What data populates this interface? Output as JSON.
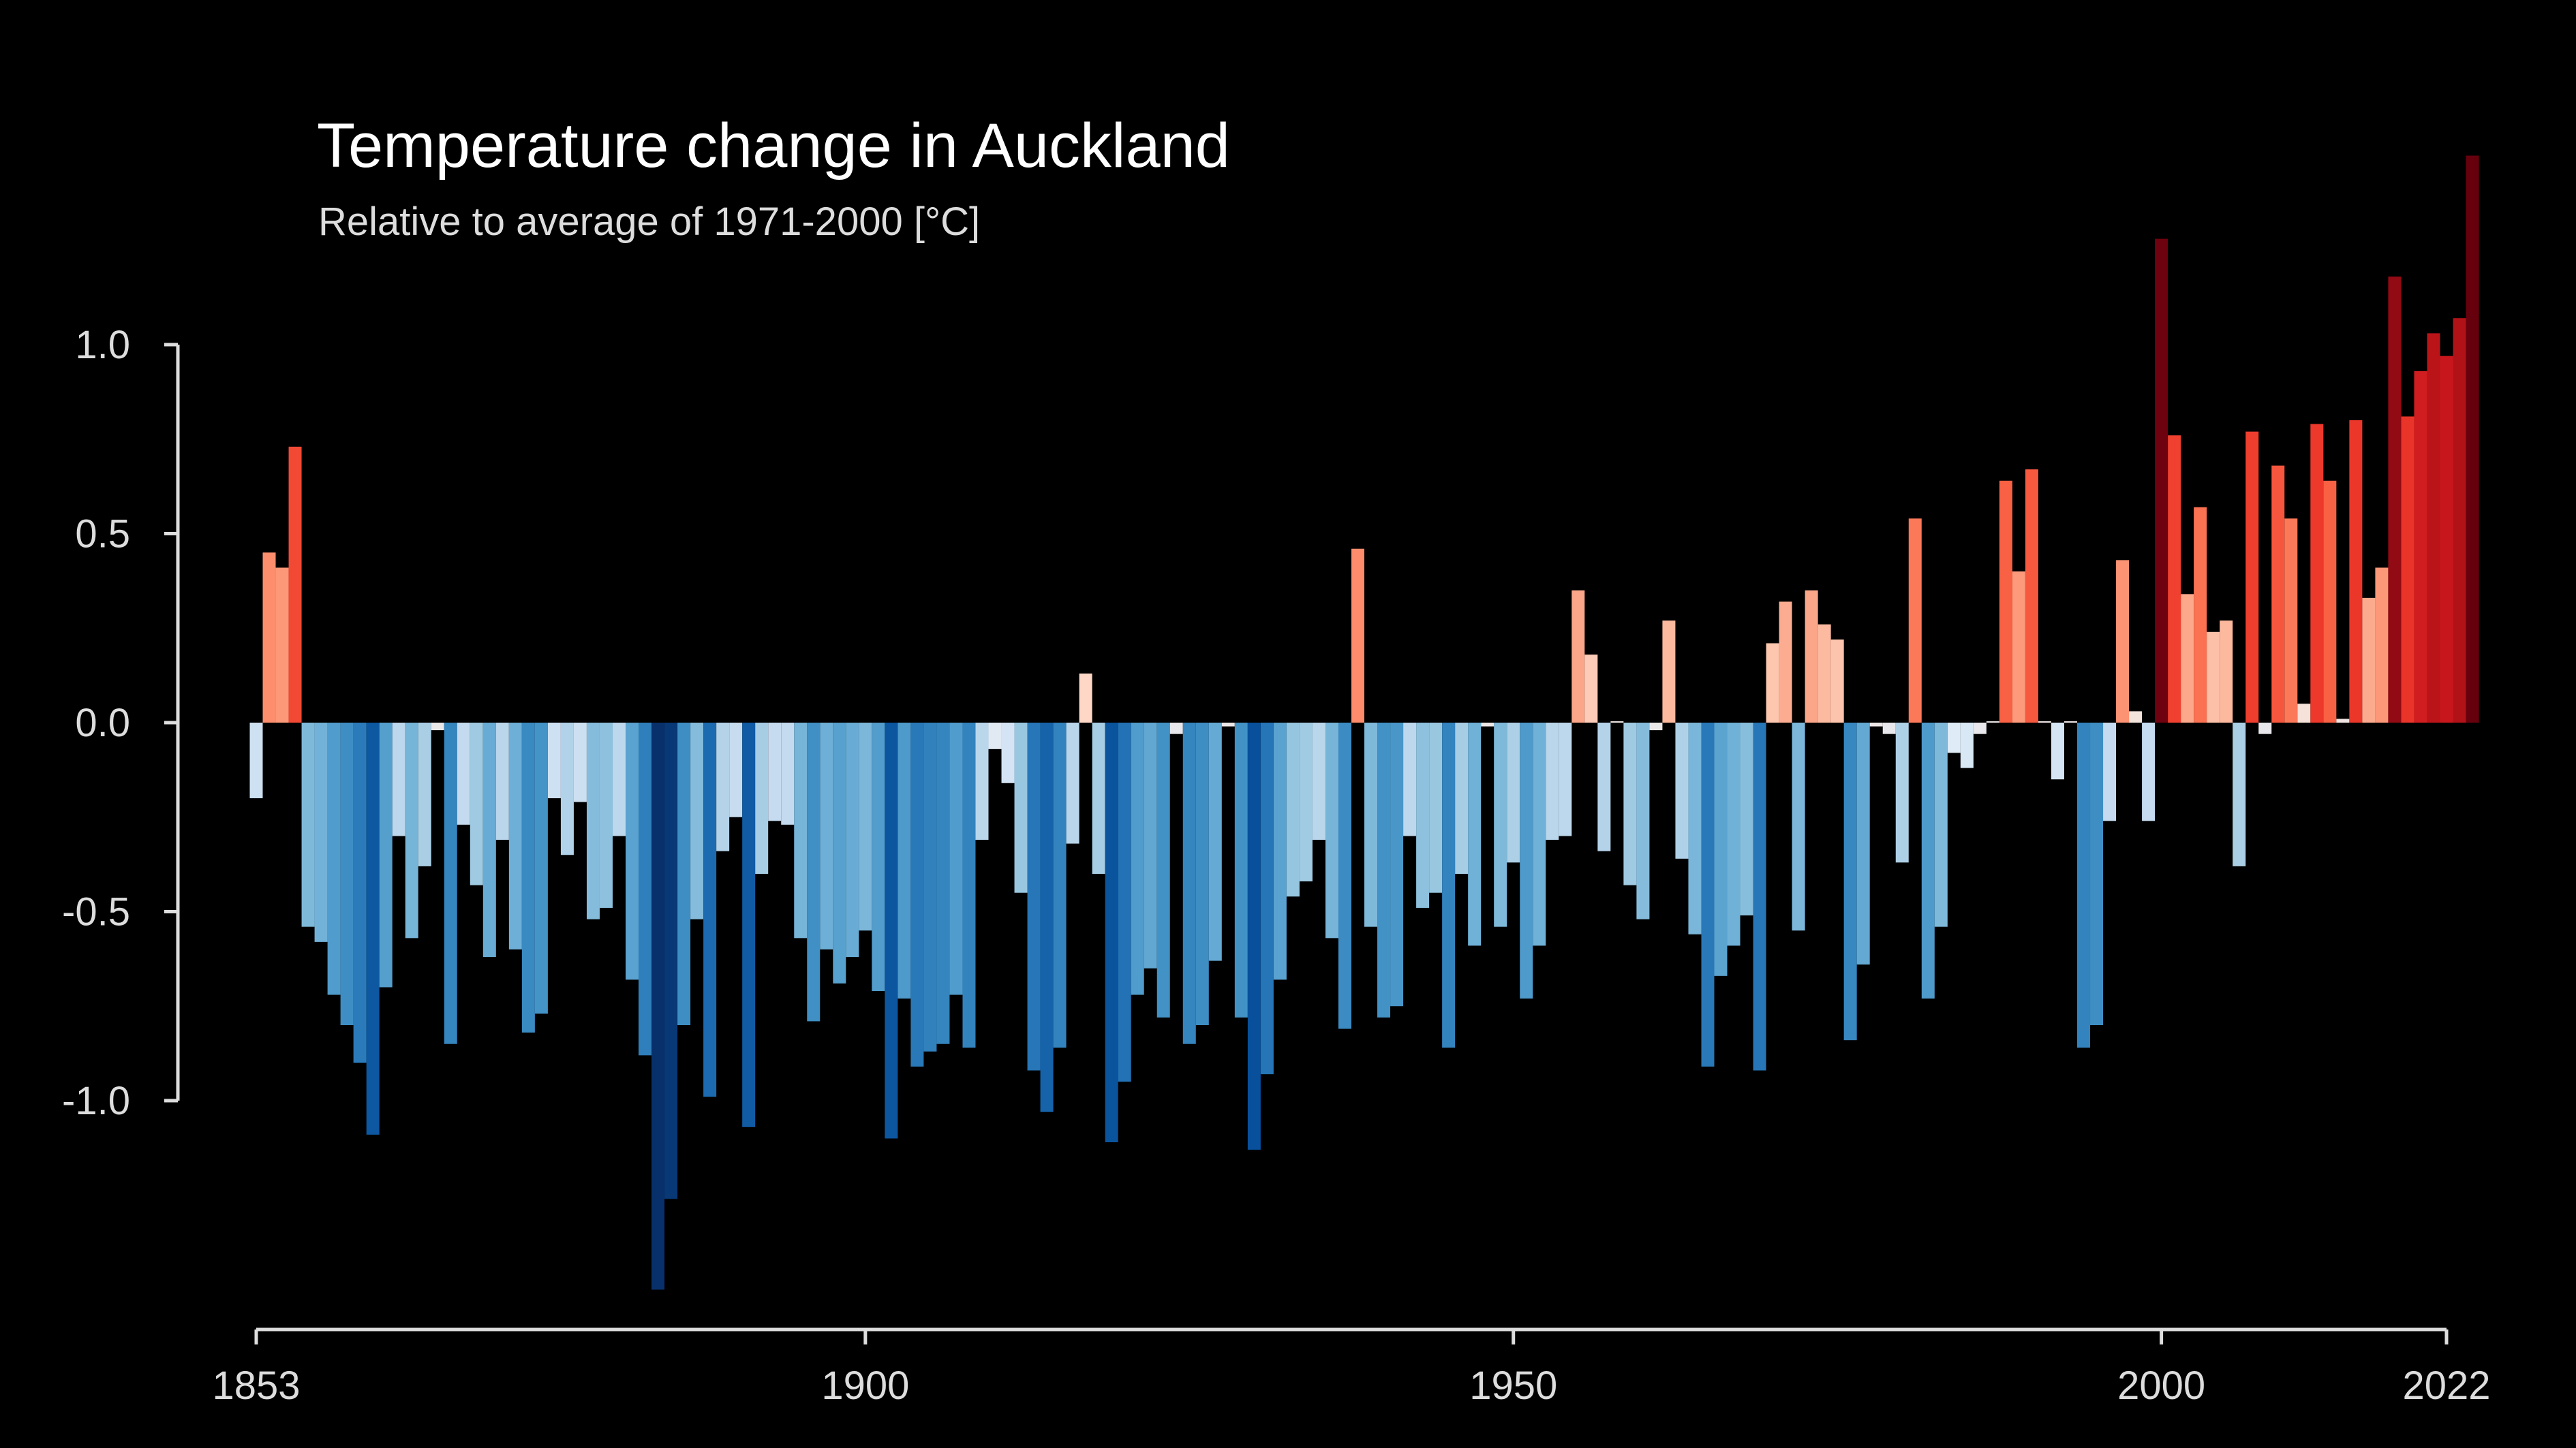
{
  "chart_data": {
    "type": "bar",
    "title": "Temperature change in Auckland",
    "subtitle": "Relative to average of 1971-2000  [°C]",
    "xlabel": "",
    "ylabel": "",
    "x_start": 1853,
    "x_end": 2022,
    "ylim": [
      -1.55,
      1.5
    ],
    "y_ticks": [
      1.0,
      0.5,
      0.0,
      -0.5,
      -1.0
    ],
    "y_tick_labels": [
      "1.0",
      "0.5",
      "0.0",
      "-0.5",
      "-1.0"
    ],
    "x_ticks": [
      1853,
      1900,
      1950,
      2000,
      2022
    ],
    "x_tick_labels": [
      "1853",
      "1900",
      "1950",
      "2000",
      "2022"
    ],
    "grid": false,
    "legend": "none",
    "color_scale": {
      "min": -1.3,
      "max": 1.3,
      "stops": [
        "#08306b",
        "#08519c",
        "#2171b5",
        "#4292c6",
        "#6baed6",
        "#9ecae1",
        "#c6dbef",
        "#deebf7",
        "#fee0d2",
        "#fcbba1",
        "#fc9272",
        "#fb6a4a",
        "#ef3b2c",
        "#cb181d",
        "#a50f15",
        "#67000d"
      ]
    },
    "values": [
      -0.2,
      0.45,
      0.41,
      0.73,
      -0.54,
      -0.58,
      -0.72,
      -0.8,
      -0.9,
      -1.09,
      -0.7,
      -0.3,
      -0.57,
      -0.38,
      -0.02,
      -0.85,
      -0.27,
      -0.43,
      -0.62,
      -0.31,
      -0.6,
      -0.82,
      -0.77,
      -0.2,
      -0.35,
      -0.21,
      -0.52,
      -0.49,
      -0.3,
      -0.68,
      -0.88,
      -1.5,
      -1.26,
      -0.8,
      -0.52,
      -0.99,
      -0.34,
      -0.25,
      -1.07,
      -0.4,
      -0.26,
      -0.27,
      -0.57,
      -0.79,
      -0.6,
      -0.69,
      -0.62,
      -0.55,
      -0.71,
      -1.1,
      -0.73,
      -0.91,
      -0.87,
      -0.85,
      -0.72,
      -0.86,
      -0.31,
      -0.07,
      -0.16,
      -0.45,
      -0.92,
      -1.03,
      -0.86,
      -0.32,
      0.13,
      -0.4,
      -1.11,
      -0.95,
      -0.72,
      -0.65,
      -0.78,
      -0.03,
      -0.85,
      -0.8,
      -0.63,
      -0.01,
      -0.78,
      -1.13,
      -0.93,
      -0.68,
      -0.46,
      -0.42,
      -0.31,
      -0.57,
      -0.81,
      0.46,
      -0.54,
      -0.78,
      -0.75,
      -0.3,
      -0.49,
      -0.45,
      -0.86,
      -0.4,
      -0.59,
      -0.01,
      -0.54,
      -0.37,
      -0.73,
      -0.59,
      -0.31,
      -0.3,
      0.35,
      0.18,
      -0.34,
      0.0,
      -0.43,
      -0.52,
      -0.02,
      0.27,
      -0.36,
      -0.56,
      -0.91,
      -0.67,
      -0.59,
      -0.51,
      -0.92,
      0.21,
      0.32,
      -0.55,
      0.35,
      0.26,
      0.22,
      -0.84,
      -0.64,
      -0.01,
      -0.03,
      -0.37,
      0.54,
      -0.73,
      -0.54,
      -0.08,
      -0.12,
      -0.03,
      0.0,
      0.64,
      0.4,
      0.67,
      0.0,
      -0.15,
      0.0,
      -0.86,
      -0.8,
      -0.26,
      0.43,
      0.03,
      -0.26,
      1.28,
      0.76,
      0.34,
      0.57,
      0.24,
      0.27,
      -0.38,
      0.77,
      -0.03,
      0.68,
      0.54,
      0.05,
      0.79,
      0.64,
      0.01,
      0.8,
      0.33,
      0.41,
      1.18,
      0.81,
      0.93,
      1.03,
      0.97,
      1.07,
      1.5
    ]
  }
}
